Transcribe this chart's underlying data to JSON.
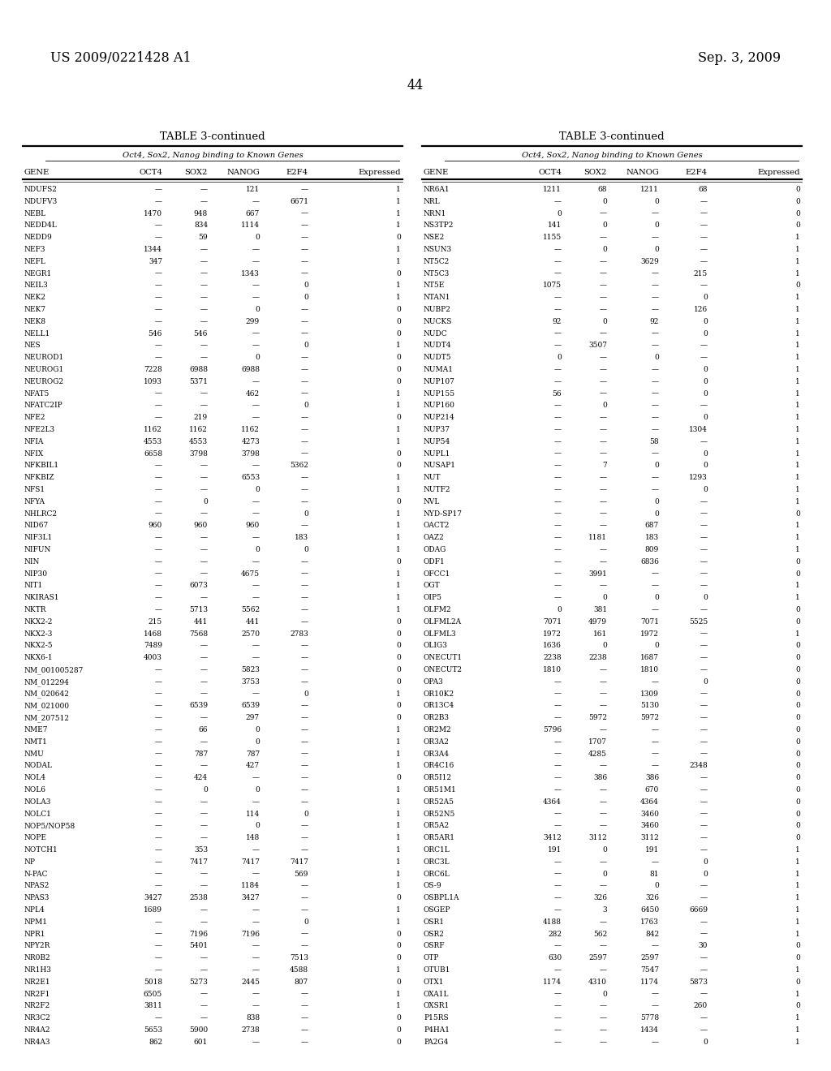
{
  "header_left": "US 2009/0221428 A1",
  "header_right": "Sep. 3, 2009",
  "page_number": "44",
  "table_title": "TABLE 3-continued",
  "subtitle": "Oct4, Sox2, Nanog binding to Known Genes",
  "columns": [
    "GENE",
    "OCT4",
    "SOX2",
    "NANOG",
    "E2F4",
    "Expressed"
  ],
  "left_data": [
    [
      "NDUFS2",
      "—",
      "—",
      "121",
      "—",
      "1"
    ],
    [
      "NDUFV3",
      "—",
      "—",
      "—",
      "6671",
      "1"
    ],
    [
      "NEBL",
      "1470",
      "948",
      "667",
      "—",
      "1"
    ],
    [
      "NEDD4L",
      "—",
      "834",
      "1114",
      "—",
      "1"
    ],
    [
      "NEDD9",
      "—",
      "59",
      "0",
      "—",
      "0"
    ],
    [
      "NEF3",
      "1344",
      "—",
      "—",
      "—",
      "1"
    ],
    [
      "NEFL",
      "347",
      "—",
      "—",
      "—",
      "1"
    ],
    [
      "NEGR1",
      "—",
      "—",
      "1343",
      "—",
      "0"
    ],
    [
      "NEIL3",
      "—",
      "—",
      "—",
      "0",
      "1"
    ],
    [
      "NEK2",
      "—",
      "—",
      "—",
      "0",
      "1"
    ],
    [
      "NEK7",
      "—",
      "—",
      "0",
      "—",
      "0"
    ],
    [
      "NEK8",
      "—",
      "—",
      "299",
      "—",
      "0"
    ],
    [
      "NELL1",
      "546",
      "546",
      "—",
      "—",
      "0"
    ],
    [
      "NES",
      "—",
      "—",
      "—",
      "0",
      "1"
    ],
    [
      "NEUROD1",
      "—",
      "—",
      "0",
      "—",
      "0"
    ],
    [
      "NEUROG1",
      "7228",
      "6988",
      "6988",
      "—",
      "0"
    ],
    [
      "NEUROG2",
      "1093",
      "5371",
      "—",
      "—",
      "0"
    ],
    [
      "NFAT5",
      "—",
      "—",
      "462",
      "—",
      "1"
    ],
    [
      "NFATC2IP",
      "—",
      "—",
      "—",
      "0",
      "1"
    ],
    [
      "NFE2",
      "—",
      "219",
      "—",
      "—",
      "0"
    ],
    [
      "NFE2L3",
      "1162",
      "1162",
      "1162",
      "—",
      "1"
    ],
    [
      "NFIA",
      "4553",
      "4553",
      "4273",
      "—",
      "1"
    ],
    [
      "NFIX",
      "6658",
      "3798",
      "3798",
      "—",
      "0"
    ],
    [
      "NFKBIL1",
      "—",
      "—",
      "—",
      "5362",
      "0"
    ],
    [
      "NFKBIZ",
      "—",
      "—",
      "6553",
      "—",
      "1"
    ],
    [
      "NFS1",
      "—",
      "—",
      "0",
      "—",
      "1"
    ],
    [
      "NFYA",
      "—",
      "0",
      "—",
      "—",
      "0"
    ],
    [
      "NHLRC2",
      "—",
      "—",
      "—",
      "0",
      "1"
    ],
    [
      "NID67",
      "960",
      "960",
      "960",
      "—",
      "1"
    ],
    [
      "NIF3L1",
      "—",
      "—",
      "—",
      "183",
      "1"
    ],
    [
      "NIFUN",
      "—",
      "—",
      "0",
      "0",
      "1"
    ],
    [
      "NIN",
      "—",
      "—",
      "—",
      "—",
      "0"
    ],
    [
      "NIP30",
      "—",
      "—",
      "4675",
      "—",
      "1"
    ],
    [
      "NIT1",
      "—",
      "6073",
      "—",
      "—",
      "1"
    ],
    [
      "NKIRAS1",
      "—",
      "—",
      "—",
      "—",
      "1"
    ],
    [
      "NKTR",
      "—",
      "5713",
      "5562",
      "—",
      "1"
    ],
    [
      "NKX2-2",
      "215",
      "441",
      "441",
      "—",
      "0"
    ],
    [
      "NKX2-3",
      "1468",
      "7568",
      "2570",
      "2783",
      "0"
    ],
    [
      "NKX2-5",
      "7489",
      "—",
      "—",
      "—",
      "0"
    ],
    [
      "NKX6-1",
      "4003",
      "—",
      "—",
      "—",
      "0"
    ],
    [
      "NM_001005287",
      "—",
      "—",
      "5823",
      "—",
      "0"
    ],
    [
      "NM_012294",
      "—",
      "—",
      "3753",
      "—",
      "0"
    ],
    [
      "NM_020642",
      "—",
      "—",
      "—",
      "0",
      "1"
    ],
    [
      "NM_021000",
      "—",
      "6539",
      "6539",
      "—",
      "0"
    ],
    [
      "NM_207512",
      "—",
      "—",
      "297",
      "—",
      "0"
    ],
    [
      "NME7",
      "—",
      "66",
      "0",
      "—",
      "1"
    ],
    [
      "NMT1",
      "—",
      "—",
      "0",
      "—",
      "1"
    ],
    [
      "NMU",
      "—",
      "787",
      "787",
      "—",
      "1"
    ],
    [
      "NODAL",
      "—",
      "—",
      "427",
      "—",
      "1"
    ],
    [
      "NOL4",
      "—",
      "424",
      "—",
      "—",
      "0"
    ],
    [
      "NOL6",
      "—",
      "0",
      "0",
      "—",
      "1"
    ],
    [
      "NOLA3",
      "—",
      "—",
      "—",
      "—",
      "1"
    ],
    [
      "NOLC1",
      "—",
      "—",
      "114",
      "0",
      "1"
    ],
    [
      "NOP5/NOP58",
      "—",
      "—",
      "0",
      "—",
      "1"
    ],
    [
      "NOPE",
      "—",
      "—",
      "148",
      "—",
      "1"
    ],
    [
      "NOTCH1",
      "—",
      "353",
      "—",
      "—",
      "1"
    ],
    [
      "NP",
      "—",
      "7417",
      "7417",
      "7417",
      "1"
    ],
    [
      "N-PAC",
      "—",
      "—",
      "—",
      "569",
      "1"
    ],
    [
      "NPAS2",
      "—",
      "—",
      "1184",
      "—",
      "1"
    ],
    [
      "NPAS3",
      "3427",
      "2538",
      "3427",
      "—",
      "0"
    ],
    [
      "NPL4",
      "1689",
      "—",
      "—",
      "—",
      "1"
    ],
    [
      "NPM1",
      "—",
      "—",
      "—",
      "0",
      "1"
    ],
    [
      "NPR1",
      "—",
      "7196",
      "7196",
      "—",
      "0"
    ],
    [
      "NPY2R",
      "—",
      "5401",
      "—",
      "—",
      "0"
    ],
    [
      "NR0B2",
      "—",
      "—",
      "—",
      "7513",
      "0"
    ],
    [
      "NR1H3",
      "—",
      "—",
      "—",
      "4588",
      "1"
    ],
    [
      "NR2E1",
      "5018",
      "5273",
      "2445",
      "807",
      "0"
    ],
    [
      "NR2F1",
      "6505",
      "—",
      "—",
      "—",
      "1"
    ],
    [
      "NR2F2",
      "3811",
      "—",
      "—",
      "—",
      "1"
    ],
    [
      "NR3C2",
      "—",
      "—",
      "838",
      "—",
      "0"
    ],
    [
      "NR4A2",
      "5653",
      "5900",
      "2738",
      "—",
      "0"
    ],
    [
      "NR4A3",
      "862",
      "601",
      "—",
      "—",
      "0"
    ]
  ],
  "right_data": [
    [
      "NR6A1",
      "1211",
      "68",
      "1211",
      "68",
      "0"
    ],
    [
      "NRL",
      "—",
      "0",
      "0",
      "—",
      "0"
    ],
    [
      "NRN1",
      "0",
      "—",
      "—",
      "—",
      "0"
    ],
    [
      "NS3TP2",
      "141",
      "0",
      "0",
      "—",
      "0"
    ],
    [
      "NSE2",
      "1155",
      "—",
      "—",
      "—",
      "1"
    ],
    [
      "NSUN3",
      "—",
      "0",
      "0",
      "—",
      "1"
    ],
    [
      "NT5C2",
      "—",
      "—",
      "3629",
      "—",
      "1"
    ],
    [
      "NT5C3",
      "—",
      "—",
      "—",
      "215",
      "1"
    ],
    [
      "NT5E",
      "1075",
      "—",
      "—",
      "—",
      "0"
    ],
    [
      "NTAN1",
      "—",
      "—",
      "—",
      "0",
      "1"
    ],
    [
      "NUBP2",
      "—",
      "—",
      "—",
      "126",
      "1"
    ],
    [
      "NUCKS",
      "92",
      "0",
      "92",
      "0",
      "1"
    ],
    [
      "NUDC",
      "—",
      "—",
      "—",
      "0",
      "1"
    ],
    [
      "NUDT4",
      "—",
      "3507",
      "—",
      "—",
      "1"
    ],
    [
      "NUDT5",
      "0",
      "—",
      "0",
      "—",
      "1"
    ],
    [
      "NUMA1",
      "—",
      "—",
      "—",
      "0",
      "1"
    ],
    [
      "NUP107",
      "—",
      "—",
      "—",
      "0",
      "1"
    ],
    [
      "NUP155",
      "56",
      "—",
      "—",
      "0",
      "1"
    ],
    [
      "NUP160",
      "—",
      "0",
      "—",
      "—",
      "1"
    ],
    [
      "NUP214",
      "—",
      "—",
      "—",
      "0",
      "1"
    ],
    [
      "NUP37",
      "—",
      "—",
      "—",
      "1304",
      "1"
    ],
    [
      "NUP54",
      "—",
      "—",
      "58",
      "—",
      "1"
    ],
    [
      "NUPL1",
      "—",
      "—",
      "—",
      "0",
      "1"
    ],
    [
      "NUSAP1",
      "—",
      "7",
      "0",
      "0",
      "1"
    ],
    [
      "NUT",
      "—",
      "—",
      "—",
      "1293",
      "1"
    ],
    [
      "NUTF2",
      "—",
      "—",
      "—",
      "0",
      "1"
    ],
    [
      "NVL",
      "—",
      "—",
      "0",
      "—",
      "1"
    ],
    [
      "NYD-SP17",
      "—",
      "—",
      "0",
      "—",
      "0"
    ],
    [
      "OACT2",
      "—",
      "—",
      "687",
      "—",
      "1"
    ],
    [
      "OAZ2",
      "—",
      "1181",
      "183",
      "—",
      "1"
    ],
    [
      "ODAG",
      "—",
      "—",
      "809",
      "—",
      "1"
    ],
    [
      "ODF1",
      "—",
      "—",
      "6836",
      "—",
      "0"
    ],
    [
      "OFCC1",
      "—",
      "3991",
      "—",
      "—",
      "0"
    ],
    [
      "OGT",
      "—",
      "—",
      "—",
      "—",
      "1"
    ],
    [
      "OIP5",
      "—",
      "0",
      "0",
      "0",
      "1"
    ],
    [
      "OLFM2",
      "0",
      "381",
      "—",
      "—",
      "0"
    ],
    [
      "OLFML2A",
      "7071",
      "4979",
      "7071",
      "5525",
      "0"
    ],
    [
      "OLFML3",
      "1972",
      "161",
      "1972",
      "—",
      "1"
    ],
    [
      "OLIG3",
      "1636",
      "0",
      "0",
      "—",
      "0"
    ],
    [
      "ONECUT1",
      "2238",
      "2238",
      "1687",
      "—",
      "0"
    ],
    [
      "ONECUT2",
      "1810",
      "—",
      "1810",
      "—",
      "0"
    ],
    [
      "OPA3",
      "—",
      "—",
      "—",
      "0",
      "0"
    ],
    [
      "OR10K2",
      "—",
      "—",
      "1309",
      "—",
      "0"
    ],
    [
      "OR13C4",
      "—",
      "—",
      "5130",
      "—",
      "0"
    ],
    [
      "OR2B3",
      "—",
      "5972",
      "5972",
      "—",
      "0"
    ],
    [
      "OR2M2",
      "5796",
      "—",
      "—",
      "—",
      "0"
    ],
    [
      "OR3A2",
      "—",
      "1707",
      "—",
      "—",
      "0"
    ],
    [
      "OR3A4",
      "—",
      "4285",
      "—",
      "—",
      "0"
    ],
    [
      "OR4C16",
      "—",
      "—",
      "—",
      "2348",
      "0"
    ],
    [
      "OR5I12",
      "—",
      "386",
      "386",
      "—",
      "0"
    ],
    [
      "OR51M1",
      "—",
      "—",
      "670",
      "—",
      "0"
    ],
    [
      "OR52A5",
      "4364",
      "—",
      "4364",
      "—",
      "0"
    ],
    [
      "OR52N5",
      "—",
      "—",
      "3460",
      "—",
      "0"
    ],
    [
      "OR5A2",
      "—",
      "—",
      "3460",
      "—",
      "0"
    ],
    [
      "OR5AR1",
      "3412",
      "3112",
      "3112",
      "—",
      "0"
    ],
    [
      "ORC1L",
      "191",
      "0",
      "191",
      "—",
      "1"
    ],
    [
      "ORC3L",
      "—",
      "—",
      "—",
      "0",
      "1"
    ],
    [
      "ORC6L",
      "—",
      "0",
      "81",
      "0",
      "1"
    ],
    [
      "OS-9",
      "—",
      "—",
      "0",
      "—",
      "1"
    ],
    [
      "OSBPL1A",
      "—",
      "326",
      "326",
      "—",
      "1"
    ],
    [
      "OSGEP",
      "—",
      "3",
      "6450",
      "6669",
      "1"
    ],
    [
      "OSR1",
      "4188",
      "—",
      "1763",
      "—",
      "1"
    ],
    [
      "OSR2",
      "282",
      "562",
      "842",
      "—",
      "1"
    ],
    [
      "OSRF",
      "—",
      "—",
      "—",
      "30",
      "0"
    ],
    [
      "OTP",
      "630",
      "2597",
      "2597",
      "—",
      "0"
    ],
    [
      "OTUB1",
      "—",
      "—",
      "7547",
      "—",
      "1"
    ],
    [
      "OTX1",
      "1174",
      "4310",
      "1174",
      "5873",
      "0"
    ],
    [
      "OXA1L",
      "—",
      "0",
      "—",
      "—",
      "1"
    ],
    [
      "OXSR1",
      "—",
      "—",
      "—",
      "260",
      "0"
    ],
    [
      "P15RS",
      "—",
      "—",
      "5778",
      "—",
      "1"
    ],
    [
      "P4HA1",
      "—",
      "—",
      "1434",
      "—",
      "1"
    ],
    [
      "PA2G4",
      "—",
      "—",
      "—",
      "0",
      "1"
    ]
  ]
}
